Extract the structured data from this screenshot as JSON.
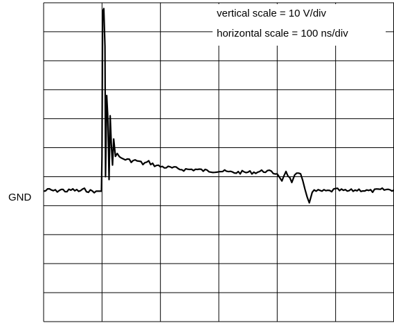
{
  "chart_data": {
    "type": "line",
    "title": "",
    "annotations": {
      "vertical_scale": "vertical scale = 10 V/div",
      "horizontal_scale": "horizontal scale = 100 ns/div"
    },
    "reference_label": "GND",
    "grid": true,
    "divisions": {
      "x": 6,
      "y": 11
    },
    "units": {
      "x": "div",
      "y": "div"
    },
    "xlim": [
      0,
      6
    ],
    "ylim": [
      -4.5,
      6.5
    ],
    "series": [
      {
        "points": [
          [
            0.0,
            0.0
          ],
          [
            0.1,
            0.05
          ],
          [
            0.2,
            0.0
          ],
          [
            0.3,
            0.05
          ],
          [
            0.4,
            0.0
          ],
          [
            0.5,
            0.05
          ],
          [
            0.6,
            0.0
          ],
          [
            0.7,
            0.05
          ],
          [
            0.8,
            0.0
          ],
          [
            0.9,
            0.0
          ],
          [
            0.99,
            0.0
          ],
          [
            1.0,
            1.2
          ],
          [
            1.01,
            6.2
          ],
          [
            1.03,
            6.3
          ],
          [
            1.05,
            5.0
          ],
          [
            1.06,
            0.5
          ],
          [
            1.08,
            3.3
          ],
          [
            1.1,
            2.5
          ],
          [
            1.12,
            0.4
          ],
          [
            1.14,
            2.6
          ],
          [
            1.16,
            1.6
          ],
          [
            1.18,
            0.9
          ],
          [
            1.2,
            1.8
          ],
          [
            1.23,
            1.2
          ],
          [
            1.26,
            1.3
          ],
          [
            1.3,
            1.15
          ],
          [
            1.4,
            1.1
          ],
          [
            1.5,
            1.05
          ],
          [
            1.6,
            1.05
          ],
          [
            1.7,
            0.95
          ],
          [
            1.8,
            1.0
          ],
          [
            1.9,
            0.9
          ],
          [
            2.0,
            0.85
          ],
          [
            2.2,
            0.8
          ],
          [
            2.4,
            0.75
          ],
          [
            2.6,
            0.75
          ],
          [
            2.8,
            0.7
          ],
          [
            3.0,
            0.7
          ],
          [
            3.2,
            0.65
          ],
          [
            3.4,
            0.65
          ],
          [
            3.6,
            0.65
          ],
          [
            3.8,
            0.7
          ],
          [
            4.0,
            0.6
          ],
          [
            4.08,
            0.35
          ],
          [
            4.15,
            0.7
          ],
          [
            4.25,
            0.3
          ],
          [
            4.3,
            0.6
          ],
          [
            4.4,
            0.55
          ],
          [
            4.55,
            -0.4
          ],
          [
            4.6,
            0.0
          ],
          [
            4.7,
            0.0
          ],
          [
            4.8,
            0.0
          ],
          [
            4.9,
            0.0
          ],
          [
            5.0,
            0.05
          ],
          [
            5.2,
            0.0
          ],
          [
            5.4,
            0.05
          ],
          [
            5.6,
            0.0
          ],
          [
            5.8,
            0.05
          ],
          [
            6.0,
            0.05
          ]
        ]
      }
    ]
  }
}
